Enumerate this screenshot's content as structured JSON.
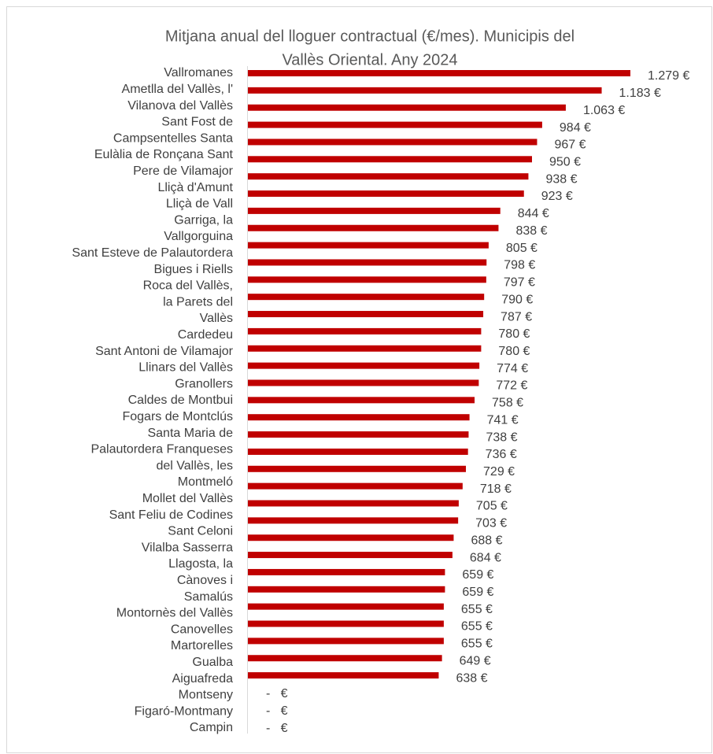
{
  "chart_data": {
    "type": "barh",
    "title_lines": [
      "Mitjana anual del lloguer contractual (€/mes). Municipis del",
      "Vallès Oriental. Any 2024"
    ],
    "label_lines": [
      "Vallromanes",
      "Ametlla del Vallès, l'",
      "Vilanova del Vallès",
      "Sant Fost de",
      "Campsentelles Santa",
      "Eulàlia de Ronçana Sant",
      "Pere de Vilamajor",
      "Lliçà d'Amunt",
      "Lliçà de Vall",
      "Garriga, la",
      "Vallgorguina",
      "Sant Esteve de Palautordera",
      "Bigues i Riells",
      "Roca del Vallès,",
      "la Parets del",
      "Vallès",
      "Cardedeu",
      "Sant Antoni de Vilamajor",
      "Llinars del Vallès",
      "Granollers",
      "Caldes de Montbui",
      "Fogars de Montclús",
      "Santa Maria de",
      "Palautordera Franqueses",
      "del Vallès, les",
      "Montmeló",
      "Mollet del Vallès",
      "Sant Feliu de Codines",
      "Sant Celoni",
      "Vilalba Sasserra",
      "Llagosta, la",
      "Cànoves i",
      "Samalús",
      "Montornès del Vallès",
      "Canovelles",
      "Martorelles",
      "Gualba",
      "Aiguafreda",
      "Montseny",
      "Figaró-Montmany",
      "Campin"
    ],
    "values": [
      1279,
      1183,
      1063,
      984,
      967,
      950,
      938,
      923,
      844,
      838,
      805,
      798,
      797,
      790,
      787,
      780,
      780,
      774,
      772,
      758,
      741,
      738,
      736,
      729,
      718,
      705,
      703,
      688,
      684,
      659,
      659,
      655,
      655,
      655,
      649,
      638,
      null,
      null,
      null
    ],
    "value_labels": [
      "1.279 €",
      "1.183 €",
      "1.063 €",
      "984 €",
      "967 €",
      "950 €",
      "938 €",
      "923 €",
      "844 €",
      "838 €",
      "805 €",
      "798 €",
      "797 €",
      "790 €",
      "787 €",
      "780 €",
      "780 €",
      "774 €",
      "772 €",
      "758 €",
      "741 €",
      "738 €",
      "736 €",
      "729 €",
      "718 €",
      "705 €",
      "703 €",
      "688 €",
      "684 €",
      "659 €",
      "659 €",
      "655 €",
      "655 €",
      "655 €",
      "649 €",
      "638 €",
      "-   €",
      "-   €",
      "-   €"
    ],
    "color": "#c00000",
    "xlim": [
      0,
      1300
    ]
  }
}
